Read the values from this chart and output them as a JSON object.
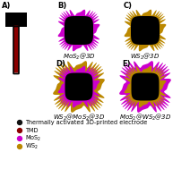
{
  "bg_color": "#ffffff",
  "label_A": "A)",
  "label_B": "B)",
  "label_C": "C)",
  "label_D": "D)",
  "label_E": "E)",
  "title_B": "MoS$_2$@3D",
  "title_C": "WS$_2$@3D",
  "title_D": "WS$_2$@MoS$_2$@3D",
  "title_E": "MoS$_2$@WS$_2$@3D",
  "black_color": "#000000",
  "red_color": "#8B0000",
  "magenta_color": "#CC00CC",
  "gold_color": "#BB8800",
  "legend_items": [
    {
      "label": "Thermally activated 3D-printed electrode",
      "color": "#111111"
    },
    {
      "label": "TMD",
      "color": "#8B0000"
    },
    {
      "label": "MoS$_2$",
      "color": "#CC00CC"
    },
    {
      "label": "WS$_2$",
      "color": "#BB8800"
    }
  ],
  "font_size": 5.0,
  "label_font_size": 6.0
}
